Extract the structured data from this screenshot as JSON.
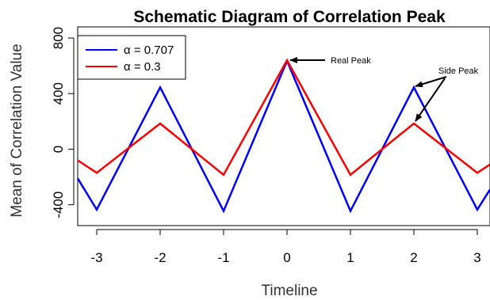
{
  "chart_data": {
    "type": "line",
    "title": "Schematic Diagram of Correlation Peak",
    "xlabel": "Timeline",
    "ylabel": "Mean of Correlation Value",
    "xlim": [
      -3.3,
      3.2
    ],
    "ylim": [
      -550,
      880
    ],
    "x_ticks": [
      -3,
      -2,
      -1,
      0,
      1,
      2,
      3
    ],
    "y_ticks": [
      -400,
      0,
      400,
      800
    ],
    "grid": false,
    "legend_position": "top-left",
    "series": [
      {
        "name": "α = 0.707",
        "color": "#0000ff",
        "x": [
          -3.3,
          -3.0,
          -2.0,
          -1.0,
          0.0,
          1.0,
          2.0,
          3.0,
          3.2
        ],
        "y": [
          -210,
          -435,
          445,
          -445,
          635,
          -445,
          445,
          -435,
          -290
        ]
      },
      {
        "name": "α = 0.3",
        "color": "#ff0000",
        "x": [
          -3.3,
          -3.0,
          -2.0,
          -1.0,
          0.0,
          1.0,
          2.0,
          3.0,
          3.2
        ],
        "y": [
          -80,
          -170,
          185,
          -185,
          640,
          -185,
          185,
          -170,
          -110
        ]
      }
    ],
    "annotations": [
      {
        "text": "Real Peak",
        "arrow_to": {
          "x": 0.0,
          "y": 640
        }
      },
      {
        "text": "Side Peak",
        "arrow_to": [
          {
            "x": 2.0,
            "y": 460
          },
          {
            "x": 2.0,
            "y": 185
          }
        ]
      }
    ]
  }
}
